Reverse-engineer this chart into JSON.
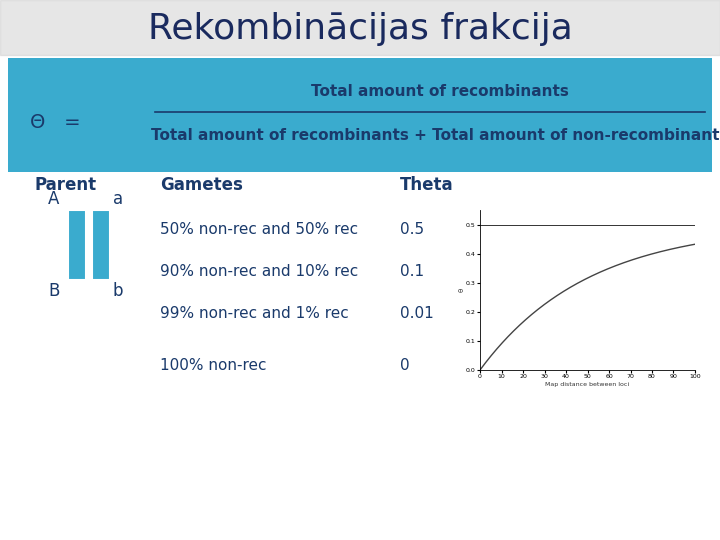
{
  "title": "Rekombinācijas frakcija",
  "title_fontsize": 26,
  "title_color": "#1a2a5e",
  "bg_color": "#ffffff",
  "watermark_color": "#c8c8c8",
  "formula_bg": "#3aabce",
  "formula_text_top": "Total amount of recombinants",
  "formula_text_bottom": "Total amount of recombinants + Total amount of non-recombinants",
  "theta_symbol": "Θ",
  "equals": "=",
  "col_headers": [
    "Parent",
    "Gametes",
    "Theta"
  ],
  "rows": [
    {
      "gametes": "50% non-rec and 50% rec",
      "theta": "0.5"
    },
    {
      "gametes": "90% non-rec and 10% rec",
      "theta": "0.1"
    },
    {
      "gametes": "99% non-rec and 1% rec",
      "theta": "0.01"
    },
    {
      "gametes": "100% non-rec",
      "theta": "0"
    }
  ],
  "bar_color": "#3aabce",
  "text_color_dark": "#1a3a6b",
  "text_color_formula": "#1a3a6b",
  "header_fontsize": 12,
  "row_fontsize": 11,
  "formula_fontsize": 11
}
